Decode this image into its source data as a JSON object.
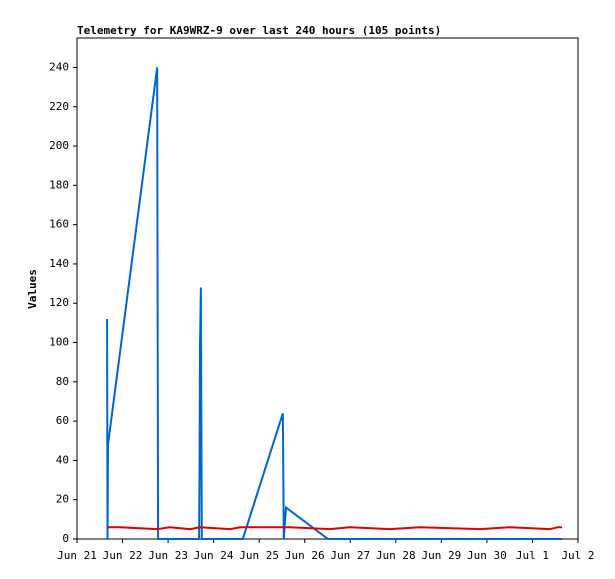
{
  "chart_data": {
    "type": "line",
    "title": "Telemetry for KA9WRZ-9 over last 240 hours (105 points)",
    "y_label": "Values",
    "xlim": [
      21,
      32
    ],
    "xticks": [
      {
        "value": 21,
        "label": "Jun 21"
      },
      {
        "value": 22,
        "label": "Jun 22"
      },
      {
        "value": 23,
        "label": "Jun 23"
      },
      {
        "value": 24,
        "label": "Jun 24"
      },
      {
        "value": 25,
        "label": "Jun 25"
      },
      {
        "value": 26,
        "label": "Jun 26"
      },
      {
        "value": 27,
        "label": "Jun 27"
      },
      {
        "value": 28,
        "label": "Jun 28"
      },
      {
        "value": 29,
        "label": "Jun 29"
      },
      {
        "value": 30,
        "label": "Jun 30"
      },
      {
        "value": 31,
        "label": "Jul 1"
      },
      {
        "value": 32,
        "label": "Jul 2"
      }
    ],
    "ylim": [
      0,
      255
    ],
    "yticks": [
      0,
      20,
      40,
      60,
      80,
      100,
      120,
      140,
      160,
      180,
      200,
      220,
      240
    ],
    "grid": false,
    "series": [
      {
        "color": "#0066cc",
        "x": [
          21.66,
          21.67,
          21.68,
          22.76,
          22.78,
          23.68,
          23.69,
          23.7,
          23.72,
          23.74,
          24.64,
          25.52,
          25.54,
          25.59,
          26.51,
          28.09,
          30.29,
          31.65
        ],
        "values": [
          112,
          0,
          48,
          240,
          0,
          0,
          32,
          97,
          128,
          0,
          0,
          64,
          0,
          16,
          0,
          0,
          0,
          0
        ]
      },
      {
        "color": "#e00000",
        "x": [
          21.66,
          21.94,
          22.76,
          23.04,
          23.48,
          23.7,
          24.36,
          24.58,
          25.68,
          26.55,
          26.99,
          27.87,
          28.53,
          29.85,
          30.51,
          31.38,
          31.56,
          31.65
        ],
        "values": [
          6,
          6,
          5,
          6,
          5,
          6,
          5,
          6,
          6,
          5,
          6,
          5,
          6,
          5,
          6,
          5,
          6,
          6
        ]
      }
    ]
  }
}
